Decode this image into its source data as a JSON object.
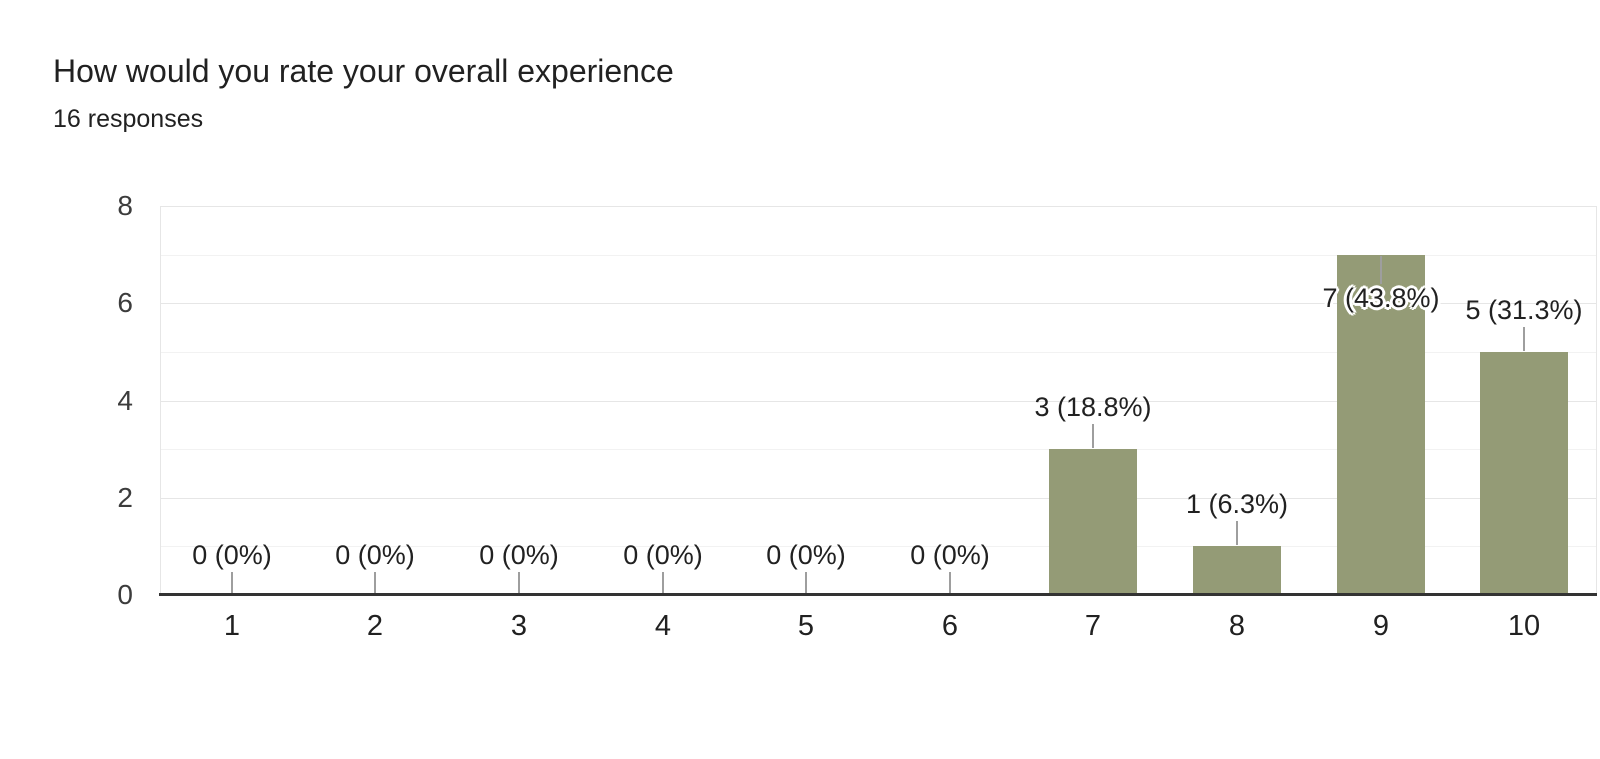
{
  "header": {
    "title": "How would you rate your overall experience",
    "subtitle": "16 responses"
  },
  "chart_data": {
    "type": "bar",
    "title": "How would you rate your overall experience",
    "subtitle": "16 responses",
    "categories": [
      "1",
      "2",
      "3",
      "4",
      "5",
      "6",
      "7",
      "8",
      "9",
      "10"
    ],
    "values": [
      0,
      0,
      0,
      0,
      0,
      0,
      3,
      1,
      7,
      5
    ],
    "annotations": [
      "0 (0%)",
      "0 (0%)",
      "0 (0%)",
      "0 (0%)",
      "0 (0%)",
      "0 (0%)",
      "3 (18.8%)",
      "1 (6.3%)",
      "7 (43.8%)",
      "5 (31.3%)"
    ],
    "y_ticks": [
      0,
      2,
      4,
      6,
      8
    ],
    "ylim": [
      0,
      8
    ],
    "xlabel": "",
    "ylabel": "",
    "grid": true,
    "legend_position": "none",
    "colors": {
      "bar": "#949b76",
      "major_gridline": "#e6e6e6",
      "minor_gridline": "#f2f2f2",
      "baseline": "#333333",
      "stem": "#9e9e9e",
      "axis_text": "#3c3c3c",
      "annotation_text": "#212121",
      "title_text": "#212121",
      "background": "#ffffff"
    }
  }
}
